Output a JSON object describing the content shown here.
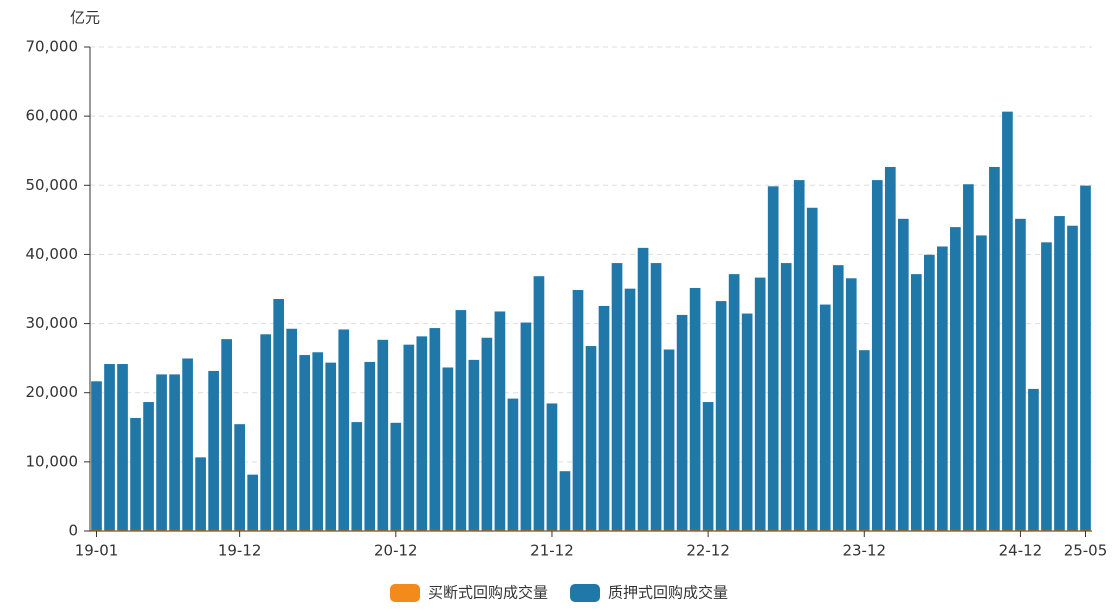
{
  "chart_data": {
    "type": "bar",
    "stacked": true,
    "y_label": "亿元",
    "categories": [
      "19-01",
      null,
      null,
      null,
      null,
      null,
      null,
      null,
      null,
      null,
      null,
      "19-12",
      null,
      null,
      null,
      null,
      null,
      null,
      null,
      null,
      null,
      null,
      null,
      "20-12",
      null,
      null,
      null,
      null,
      null,
      null,
      null,
      null,
      null,
      null,
      null,
      "21-12",
      null,
      null,
      null,
      null,
      null,
      null,
      null,
      null,
      null,
      null,
      null,
      "22-12",
      null,
      null,
      null,
      null,
      null,
      null,
      null,
      null,
      null,
      null,
      null,
      "23-12",
      null,
      null,
      null,
      null,
      null,
      null,
      null,
      null,
      null,
      null,
      null,
      "24-12",
      null,
      null,
      null,
      null,
      "25-05"
    ],
    "series": [
      {
        "name": "买断式回购成交量",
        "color": "#f28a1c",
        "values": [
          150,
          150,
          150,
          150,
          150,
          150,
          150,
          150,
          150,
          150,
          150,
          150,
          150,
          150,
          150,
          150,
          150,
          150,
          150,
          150,
          150,
          150,
          150,
          150,
          150,
          150,
          150,
          150,
          150,
          150,
          150,
          150,
          150,
          150,
          150,
          150,
          150,
          150,
          150,
          150,
          150,
          150,
          150,
          150,
          150,
          150,
          150,
          150,
          150,
          150,
          150,
          150,
          150,
          150,
          150,
          150,
          150,
          150,
          150,
          150,
          150,
          150,
          150,
          150,
          150,
          150,
          150,
          150,
          150,
          150,
          150,
          150,
          150,
          150,
          150,
          150,
          150
        ]
      },
      {
        "name": "质押式回购成交量",
        "color": "#1f78a8",
        "values": [
          21500,
          24000,
          24000,
          16200,
          18500,
          22500,
          22500,
          24800,
          10500,
          23000,
          27600,
          15300,
          8000,
          28300,
          33400,
          29100,
          25300,
          25700,
          24200,
          29000,
          15600,
          24300,
          27500,
          15500,
          26800,
          28000,
          29200,
          23500,
          31800,
          24600,
          27800,
          31600,
          19000,
          30000,
          36700,
          18300,
          8500,
          34700,
          26600,
          32400,
          38600,
          34900,
          40800,
          38600,
          26100,
          31100,
          35000,
          18500,
          33100,
          37000,
          31300,
          36500,
          49700,
          38600,
          50600,
          46600,
          32600,
          38300,
          36400,
          26000,
          50600,
          52500,
          45000,
          37000,
          39800,
          41000,
          43800,
          50000,
          42600,
          52500,
          60500,
          45000,
          20400,
          41600,
          45400,
          44000,
          49800
        ]
      }
    ],
    "ylim": [
      0,
      70000
    ],
    "yticks": [
      0,
      {
        "value": 10000,
        "label": "10,000"
      },
      {
        "value": 20000,
        "label": "20,000"
      },
      {
        "value": 30000,
        "label": "30,000"
      },
      {
        "value": 40000,
        "label": "40,000"
      },
      {
        "value": 50000,
        "label": "50,000"
      },
      {
        "value": 60000,
        "label": "60,000"
      },
      {
        "value": 70000,
        "label": "70,000"
      }
    ],
    "grid": true,
    "legend": "bottom"
  }
}
